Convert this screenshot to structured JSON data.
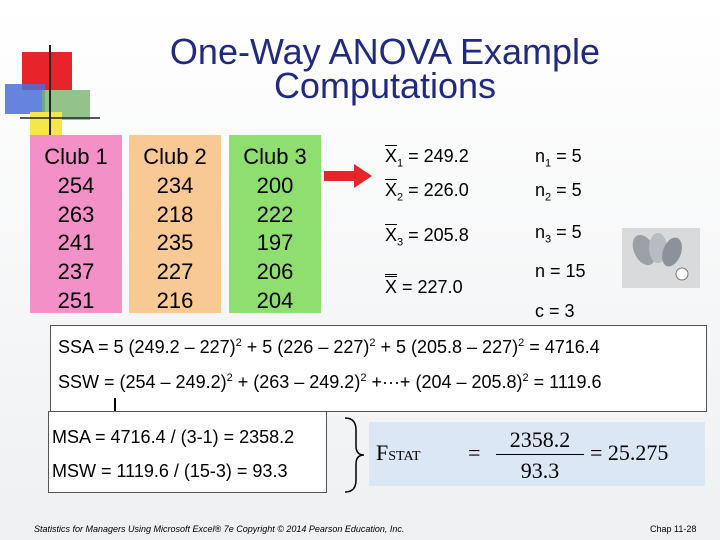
{
  "title": [
    "One-Way ANOVA Example",
    "Computations"
  ],
  "table": {
    "headers": [
      "Club 1",
      "Club 2",
      "Club 3"
    ],
    "rows": [
      [
        "254",
        "234",
        "200"
      ],
      [
        "263",
        "218",
        "222"
      ],
      [
        "241",
        "235",
        "197"
      ],
      [
        "237",
        "227",
        "206"
      ],
      [
        "251",
        "216",
        "204"
      ]
    ]
  },
  "means": [
    {
      "var": "X",
      "sub": "1",
      "text": " = 249.2"
    },
    {
      "var": "X",
      "sub": "2",
      "text": " = 226.0"
    },
    {
      "var": "X",
      "sub": "3",
      "text": " = 205.8"
    }
  ],
  "sizes": [
    {
      "var": "n",
      "sub": "1",
      "text": " = 5"
    },
    {
      "var": "n",
      "sub": "2",
      "text": " = 5"
    },
    {
      "var": "n",
      "sub": "3",
      "text": " = 5"
    }
  ],
  "grand_mean": {
    "var": "X",
    "text": " = 227.0"
  },
  "total_n": "n = 15",
  "groups": "c = 3",
  "ssa": [
    "SSA =  5 (249.2 – 227)",
    "2",
    " + 5 (226 – 227)",
    "2",
    " + 5 (205.8 – 227)",
    "2",
    "  = 4716.4"
  ],
  "ssw": [
    "SSW =  (254 – 249.2)",
    "2",
    " + (263 – 249.2)",
    "2",
    " +···+ (204 – 205.8)",
    "2",
    " = 1119.6"
  ],
  "msa": "MSA = 4716.4 / (3-1) = 2358.2",
  "msw": "MSW = 1119.6 / (15-3) = 93.3",
  "fstat": {
    "f": "F",
    "sub": "STAT",
    "eq": "=",
    "numerator": "2358.2",
    "denominator": "93.3",
    "result": "= 25.275"
  },
  "footer": {
    "left": "Statistics for Managers Using Microsoft Excel® 7e Copyright © 2014 Pearson Education, Inc.",
    "right": "Chap 11-28"
  }
}
